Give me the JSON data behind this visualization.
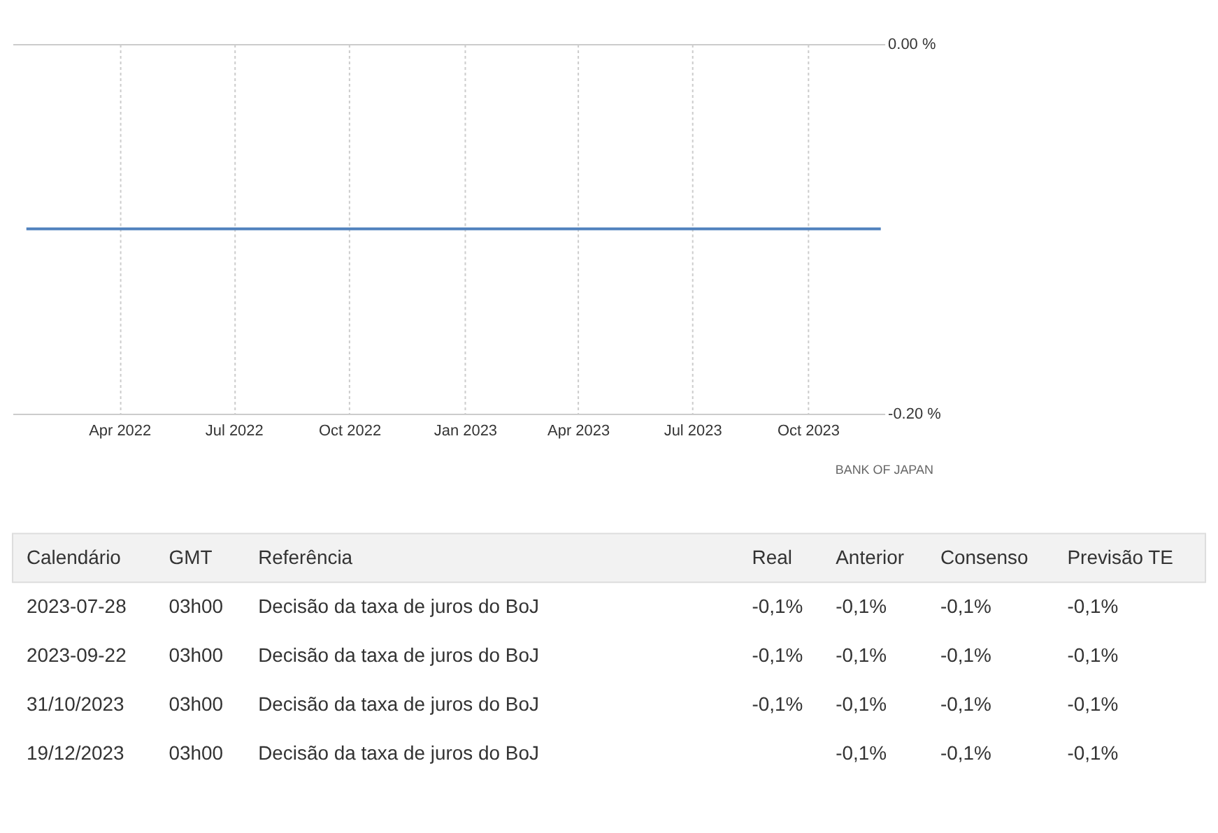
{
  "chart_data": [
    {
      "type": "line",
      "x": [
        "2022-01-17",
        "2023-11-28"
      ],
      "series": [
        {
          "color": "#4f81bd",
          "values": [
            -0.1,
            -0.1
          ]
        }
      ],
      "xlim": [
        "2022-01-06",
        "2023-12-01"
      ],
      "xticks": [
        {
          "value": "2022-04-01",
          "label": "Apr 2022"
        },
        {
          "value": "2022-07-01",
          "label": "Jul 2022"
        },
        {
          "value": "2022-10-01",
          "label": "Oct 2022"
        },
        {
          "value": "2023-01-01",
          "label": "Jan 2023"
        },
        {
          "value": "2023-04-01",
          "label": "Apr 2023"
        },
        {
          "value": "2023-07-01",
          "label": "Jul 2023"
        },
        {
          "value": "2023-10-01",
          "label": "Oct 2023"
        }
      ],
      "ylim": [
        -0.2,
        0
      ],
      "yticks": [
        {
          "value": -0.2,
          "label": "-0.20 %"
        },
        {
          "value": 0,
          "label": "0.00 %"
        }
      ],
      "grid": true,
      "annotations": [
        "BANK OF JAPAN"
      ]
    },
    {
      "type": "other",
      "annotations": [
        "Calendário",
        "GMT",
        "Referência",
        "Real",
        "Anterior",
        "Consenso",
        "Previsão TE",
        "2023-07-28",
        "03h00",
        "Decisão da taxa de juros do BoJ",
        "-0,1%",
        "-0,1%",
        "-0,1%",
        "-0,1%",
        "2023-09-22",
        "03h00",
        "Decisão da taxa de juros do BoJ",
        "-0,1%",
        "-0,1%",
        "-0,1%",
        "-0,1%",
        "31/10/2023",
        "03h00",
        "Decisão da taxa de juros do BoJ",
        "-0,1%",
        "-0,1%",
        "-0,1%",
        "-0,1%",
        "19/12/2023",
        "03h00",
        "Decisão da taxa de juros do BoJ",
        null,
        "-0,1%",
        "-0,1%",
        "-0,1%"
      ]
    }
  ]
}
